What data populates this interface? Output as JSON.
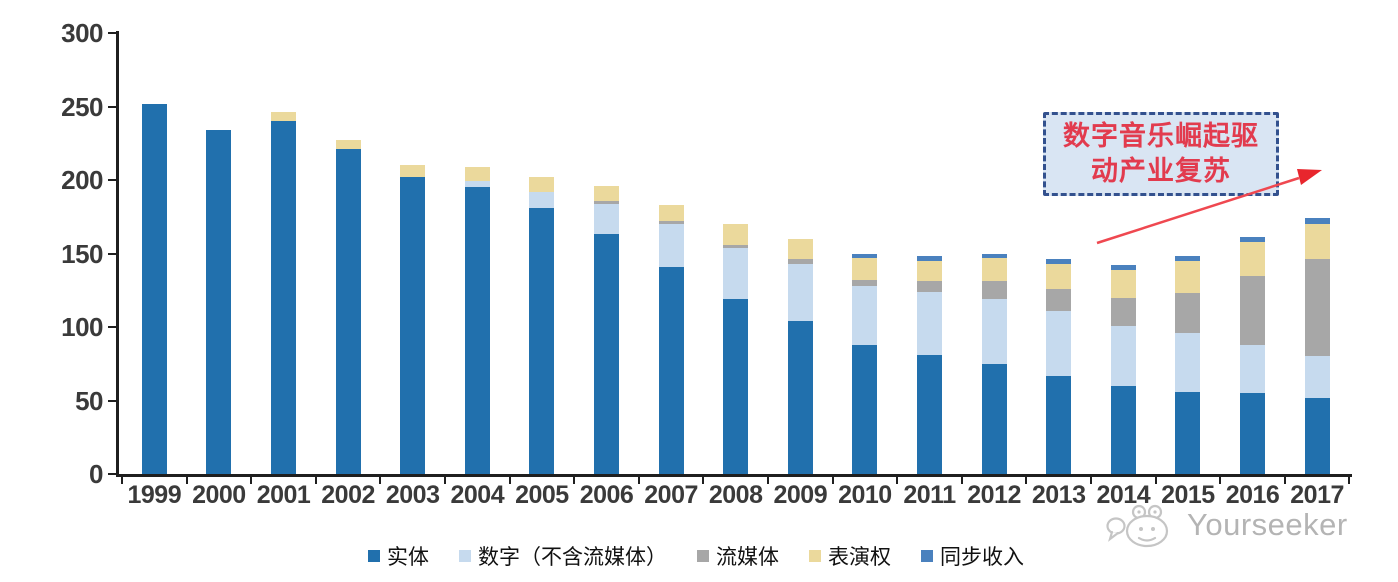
{
  "chart_data": {
    "type": "bar",
    "stacked": true,
    "categories": [
      "1999",
      "2000",
      "2001",
      "2002",
      "2003",
      "2004",
      "2005",
      "2006",
      "2007",
      "2008",
      "2009",
      "2010",
      "2011",
      "2012",
      "2013",
      "2014",
      "2015",
      "2016",
      "2017"
    ],
    "series": [
      {
        "name": "实体",
        "color": "#2170ad",
        "values": [
          252,
          234,
          240,
          221,
          202,
          195,
          181,
          163,
          141,
          119,
          104,
          88,
          81,
          75,
          67,
          60,
          56,
          55,
          52
        ]
      },
      {
        "name": "数字（不含流媒体）",
        "color": "#c6daee",
        "values": [
          0,
          0,
          0,
          0,
          0,
          4,
          11,
          21,
          29,
          35,
          39,
          40,
          43,
          44,
          44,
          41,
          40,
          33,
          28
        ]
      },
      {
        "name": "流媒体",
        "color": "#a7a7a7",
        "values": [
          0,
          0,
          0,
          0,
          0,
          0,
          0,
          2,
          2,
          2,
          3,
          4,
          7,
          12,
          15,
          19,
          27,
          47,
          66
        ]
      },
      {
        "name": "表演权",
        "color": "#ebd99c",
        "values": [
          0,
          0,
          6,
          6,
          8,
          10,
          10,
          10,
          11,
          14,
          14,
          15,
          14,
          16,
          17,
          19,
          22,
          23,
          24
        ]
      },
      {
        "name": "同步收入",
        "color": "#4a81be",
        "values": [
          0,
          0,
          0,
          0,
          0,
          0,
          0,
          0,
          0,
          0,
          0,
          3,
          3,
          3,
          3,
          3,
          3,
          3,
          4
        ]
      }
    ],
    "ylim": [
      0,
      300
    ],
    "yticks": [
      0,
      50,
      100,
      150,
      200,
      250,
      300
    ],
    "xlabel": "",
    "ylabel": "",
    "title": "",
    "grid": false,
    "legend_position": "bottom"
  },
  "annotation": {
    "line1": "数字音乐崛起驱",
    "line2": "动产业复苏",
    "box_fill": "#d9e5f3",
    "box_border": "#33518e",
    "text_color": "#e23b4e",
    "arrow_color": "#ef4850"
  },
  "watermark": {
    "text": "Yourseeker",
    "color": "#9b9b9b"
  }
}
